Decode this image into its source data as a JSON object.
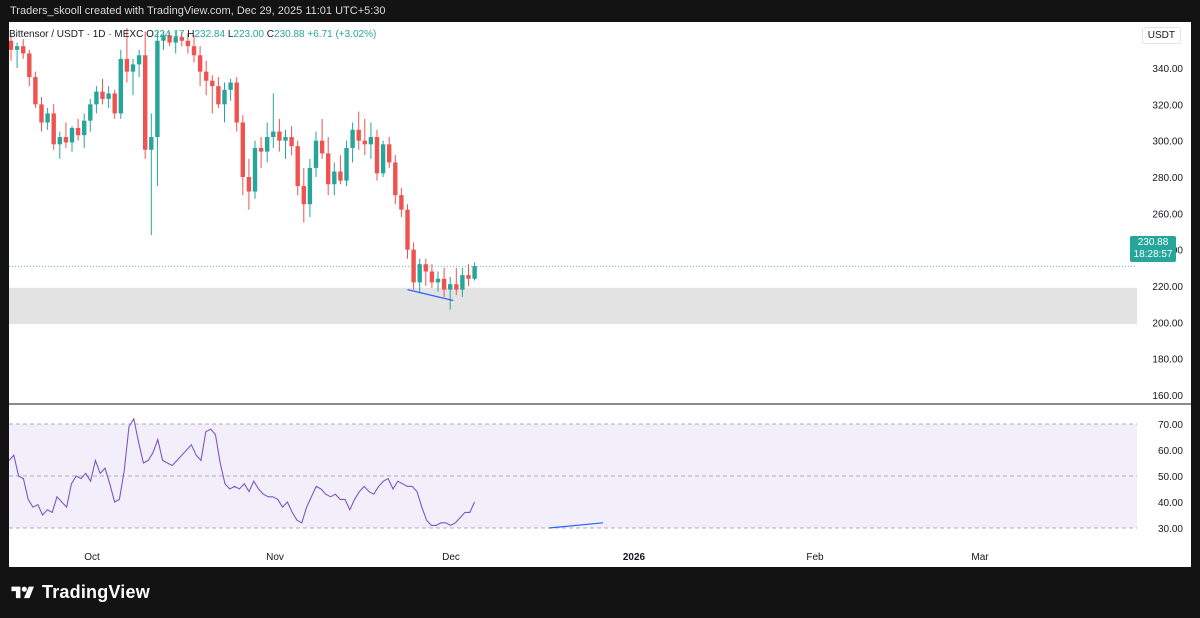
{
  "header": {
    "attribution": "Traders_skooll created with TradingView.com, Dec 29, 2025 11:01 UTC+5:30"
  },
  "legend": {
    "symbol": "Bittensor / USDT · 1D · MEXC",
    "o_label": "O",
    "o_value": "224.17",
    "h_label": "H",
    "h_value": "232.84",
    "l_label": "L",
    "l_value": "223.00",
    "c_label": "C",
    "c_value": "230.88",
    "change": "+6.71 (+3.02%)"
  },
  "currency_badge": "USDT",
  "last_price": {
    "value": "230.88",
    "countdown": "18:28:57"
  },
  "footer": {
    "brand": "TradingView"
  },
  "colors": {
    "up": "#26a69a",
    "down": "#ef5350",
    "rsi_line": "#7e57c2",
    "rsi_band": "#f2effb",
    "support_zone": "#e3e3e3",
    "divergence_line": "#2962ff"
  },
  "chart_data": [
    {
      "type": "candlestick",
      "title": "Bittensor / USDT · 1D · MEXC",
      "ylim": [
        150,
        360
      ],
      "y_ticks": [
        160,
        180,
        200,
        220,
        240,
        260,
        280,
        300,
        320,
        340
      ],
      "y_tick_labels": [
        "160.00",
        "180.00",
        "200.00",
        "220.00",
        "240.00",
        "260.00",
        "280.00",
        "300.00",
        "320.00",
        "340.00"
      ],
      "x_tick_labels": [
        "Oct",
        "Nov",
        "Dec",
        "2026",
        "Feb",
        "Mar"
      ],
      "last_close": 230.88,
      "support_zone": [
        199,
        219
      ],
      "divergence_line": {
        "from": 218,
        "to": 212
      },
      "candles": [
        {
          "o": 355,
          "h": 358,
          "l": 344,
          "c": 350
        },
        {
          "o": 350,
          "h": 354,
          "l": 340,
          "c": 352
        },
        {
          "o": 352,
          "h": 356,
          "l": 345,
          "c": 348
        },
        {
          "o": 348,
          "h": 350,
          "l": 330,
          "c": 335
        },
        {
          "o": 335,
          "h": 338,
          "l": 318,
          "c": 320
        },
        {
          "o": 320,
          "h": 324,
          "l": 305,
          "c": 310
        },
        {
          "o": 310,
          "h": 318,
          "l": 306,
          "c": 315
        },
        {
          "o": 315,
          "h": 320,
          "l": 295,
          "c": 298
        },
        {
          "o": 298,
          "h": 305,
          "l": 290,
          "c": 302
        },
        {
          "o": 302,
          "h": 310,
          "l": 296,
          "c": 299
        },
        {
          "o": 299,
          "h": 308,
          "l": 294,
          "c": 307
        },
        {
          "o": 307,
          "h": 312,
          "l": 300,
          "c": 303
        },
        {
          "o": 303,
          "h": 315,
          "l": 296,
          "c": 311
        },
        {
          "o": 311,
          "h": 323,
          "l": 305,
          "c": 320
        },
        {
          "o": 320,
          "h": 330,
          "l": 315,
          "c": 327
        },
        {
          "o": 327,
          "h": 334,
          "l": 320,
          "c": 323
        },
        {
          "o": 323,
          "h": 330,
          "l": 318,
          "c": 326
        },
        {
          "o": 326,
          "h": 328,
          "l": 312,
          "c": 315
        },
        {
          "o": 315,
          "h": 350,
          "l": 312,
          "c": 345
        },
        {
          "o": 345,
          "h": 362,
          "l": 332,
          "c": 338
        },
        {
          "o": 338,
          "h": 345,
          "l": 325,
          "c": 342
        },
        {
          "o": 342,
          "h": 350,
          "l": 335,
          "c": 347
        },
        {
          "o": 347,
          "h": 360,
          "l": 290,
          "c": 295
        },
        {
          "o": 295,
          "h": 315,
          "l": 248,
          "c": 302
        },
        {
          "o": 302,
          "h": 360,
          "l": 275,
          "c": 355
        },
        {
          "o": 355,
          "h": 360,
          "l": 350,
          "c": 358
        },
        {
          "o": 358,
          "h": 360,
          "l": 352,
          "c": 354
        },
        {
          "o": 354,
          "h": 360,
          "l": 348,
          "c": 357
        },
        {
          "o": 357,
          "h": 360,
          "l": 352,
          "c": 355
        },
        {
          "o": 355,
          "h": 359,
          "l": 348,
          "c": 352
        },
        {
          "o": 352,
          "h": 358,
          "l": 343,
          "c": 347
        },
        {
          "o": 347,
          "h": 352,
          "l": 330,
          "c": 338
        },
        {
          "o": 338,
          "h": 344,
          "l": 325,
          "c": 333
        },
        {
          "o": 333,
          "h": 336,
          "l": 315,
          "c": 330
        },
        {
          "o": 330,
          "h": 335,
          "l": 318,
          "c": 320
        },
        {
          "o": 320,
          "h": 332,
          "l": 310,
          "c": 328
        },
        {
          "o": 328,
          "h": 334,
          "l": 322,
          "c": 332
        },
        {
          "o": 332,
          "h": 335,
          "l": 305,
          "c": 310
        },
        {
          "o": 310,
          "h": 314,
          "l": 270,
          "c": 280
        },
        {
          "o": 280,
          "h": 290,
          "l": 262,
          "c": 272
        },
        {
          "o": 272,
          "h": 300,
          "l": 268,
          "c": 296
        },
        {
          "o": 296,
          "h": 302,
          "l": 285,
          "c": 294
        },
        {
          "o": 294,
          "h": 310,
          "l": 288,
          "c": 302
        },
        {
          "o": 302,
          "h": 326,
          "l": 296,
          "c": 305
        },
        {
          "o": 305,
          "h": 312,
          "l": 294,
          "c": 300
        },
        {
          "o": 300,
          "h": 306,
          "l": 290,
          "c": 302
        },
        {
          "o": 302,
          "h": 308,
          "l": 292,
          "c": 297
        },
        {
          "o": 297,
          "h": 300,
          "l": 270,
          "c": 275
        },
        {
          "o": 275,
          "h": 285,
          "l": 255,
          "c": 265
        },
        {
          "o": 265,
          "h": 290,
          "l": 258,
          "c": 285
        },
        {
          "o": 285,
          "h": 305,
          "l": 280,
          "c": 300
        },
        {
          "o": 300,
          "h": 312,
          "l": 290,
          "c": 293
        },
        {
          "o": 293,
          "h": 302,
          "l": 270,
          "c": 276
        },
        {
          "o": 276,
          "h": 288,
          "l": 270,
          "c": 283
        },
        {
          "o": 283,
          "h": 292,
          "l": 276,
          "c": 278
        },
        {
          "o": 278,
          "h": 300,
          "l": 275,
          "c": 296
        },
        {
          "o": 296,
          "h": 310,
          "l": 288,
          "c": 306
        },
        {
          "o": 306,
          "h": 316,
          "l": 295,
          "c": 300
        },
        {
          "o": 300,
          "h": 312,
          "l": 292,
          "c": 298
        },
        {
          "o": 298,
          "h": 310,
          "l": 290,
          "c": 302
        },
        {
          "o": 302,
          "h": 306,
          "l": 278,
          "c": 282
        },
        {
          "o": 282,
          "h": 300,
          "l": 280,
          "c": 298
        },
        {
          "o": 298,
          "h": 302,
          "l": 285,
          "c": 288
        },
        {
          "o": 288,
          "h": 292,
          "l": 265,
          "c": 270
        },
        {
          "o": 270,
          "h": 274,
          "l": 258,
          "c": 262
        },
        {
          "o": 262,
          "h": 265,
          "l": 235,
          "c": 240
        },
        {
          "o": 240,
          "h": 244,
          "l": 218,
          "c": 222
        },
        {
          "o": 222,
          "h": 235,
          "l": 216,
          "c": 232
        },
        {
          "o": 232,
          "h": 235,
          "l": 220,
          "c": 228
        },
        {
          "o": 228,
          "h": 232,
          "l": 219,
          "c": 222
        },
        {
          "o": 222,
          "h": 228,
          "l": 217,
          "c": 224
        },
        {
          "o": 224,
          "h": 230,
          "l": 214,
          "c": 218
        },
        {
          "o": 218,
          "h": 225,
          "l": 207,
          "c": 221
        },
        {
          "o": 221,
          "h": 230,
          "l": 215,
          "c": 218
        },
        {
          "o": 218,
          "h": 230,
          "l": 214,
          "c": 226
        },
        {
          "o": 226,
          "h": 232,
          "l": 220,
          "c": 224
        },
        {
          "o": 224,
          "h": 233,
          "l": 223,
          "c": 231
        }
      ]
    },
    {
      "type": "line",
      "title": "RSI",
      "ylim": [
        25,
        75
      ],
      "y_ticks": [
        30,
        40,
        50,
        60,
        70
      ],
      "y_tick_labels": [
        "30.00",
        "40.00",
        "50.00",
        "60.00",
        "70.00"
      ],
      "band": [
        30,
        70
      ],
      "series": [
        {
          "values": [
            56,
            58,
            50,
            49,
            41,
            38,
            39,
            35,
            37,
            36,
            42,
            40,
            38,
            47,
            50,
            49,
            51,
            48,
            56,
            51,
            53,
            47,
            40,
            41,
            52,
            69,
            72,
            63,
            55,
            56,
            59,
            64,
            56,
            55,
            54,
            56,
            58,
            60,
            62,
            58,
            56,
            67,
            68,
            66,
            55,
            47,
            45,
            46,
            45,
            47,
            44,
            48,
            45,
            43,
            42,
            42,
            41,
            38,
            40,
            36,
            33,
            32,
            38,
            42,
            46,
            45,
            43,
            42,
            43,
            41,
            41,
            37,
            41,
            44,
            46,
            44,
            43,
            46,
            48,
            49,
            45,
            48,
            47,
            46,
            46,
            44,
            38,
            33,
            31,
            31,
            32,
            32,
            31,
            32,
            34,
            36,
            36,
            40
          ],
          "final": 40
        }
      ],
      "divergence_line": {
        "from": 30,
        "to": 32
      }
    }
  ]
}
